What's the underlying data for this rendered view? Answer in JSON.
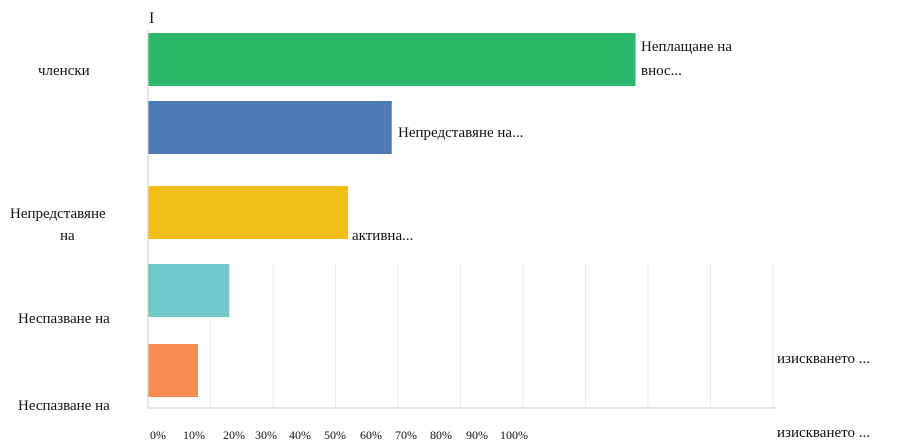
{
  "cursor_text": "I",
  "chart_data": {
    "type": "bar",
    "orientation": "horizontal",
    "xlim": [
      0,
      100
    ],
    "grid": true,
    "tick_labels": [
      "0%",
      "10%",
      "20%",
      "30%",
      "40%",
      "50%",
      "60%",
      "70%",
      "80%",
      "90%",
      "100%"
    ],
    "categories": [
      "Неплащане на членски внос...",
      "Непредставяне на...",
      "Непредставяне на активна...",
      "Неспазване на изискването ...",
      "Неспазване на изискването ..."
    ],
    "values": [
      78,
      39,
      32,
      13,
      8
    ],
    "colors": [
      "#2db86b",
      "#4c7ab5",
      "#f4be1a",
      "#71c9ca",
      "#f58c52"
    ],
    "label_fragments": {
      "left_1": "членски",
      "right_1a": "Неплащане на",
      "right_1b": "внос...",
      "right_2": "Непредставяне на...",
      "left_3a": "Непредставяне",
      "left_3b": "на",
      "right_3": "активна...",
      "left_4": "Неспазване на",
      "right_4": "изискването ...",
      "left_5": "Неспазване на",
      "right_5": "изискването ..."
    }
  }
}
